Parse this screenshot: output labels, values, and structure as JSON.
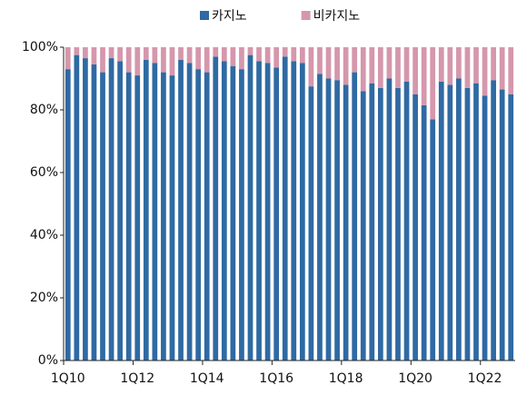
{
  "chart_data": {
    "type": "stacked_bar",
    "categories": [
      "1Q10",
      null,
      null,
      null,
      null,
      null,
      null,
      null,
      "1Q12",
      null,
      null,
      null,
      null,
      null,
      null,
      null,
      "1Q14",
      null,
      null,
      null,
      null,
      null,
      null,
      null,
      "1Q16",
      null,
      null,
      null,
      null,
      null,
      null,
      null,
      "1Q18",
      null,
      null,
      null,
      null,
      null,
      null,
      null,
      "1Q20",
      null,
      null,
      null,
      null,
      null,
      null,
      null,
      "1Q22",
      null,
      null,
      null
    ],
    "series": [
      {
        "name": "카지노",
        "color": "#2f6aa3",
        "values": [
          93,
          97.5,
          96.5,
          94.5,
          92,
          96.5,
          95.5,
          92,
          91,
          96,
          95,
          92,
          91,
          96,
          95,
          93,
          92,
          97,
          95.5,
          94,
          93,
          97.5,
          95.5,
          95,
          93.5,
          97,
          95.5,
          95,
          87.5,
          91.5,
          90,
          89.5,
          88,
          92,
          86,
          88.5,
          87,
          90,
          87,
          89,
          85,
          81.5,
          77,
          89,
          88,
          90,
          87,
          88.5,
          84.5,
          89.5,
          86.5,
          85
        ]
      },
      {
        "name": "비카지노",
        "color": "#d597ac",
        "values": [
          7,
          2.5,
          3.5,
          5.5,
          8,
          3.5,
          4.5,
          8,
          9,
          4,
          5,
          8,
          9,
          4,
          5,
          7,
          8,
          3,
          4.5,
          6,
          7,
          2.5,
          4.5,
          5,
          6.5,
          3,
          4.5,
          5,
          12.5,
          8.5,
          10,
          10.5,
          12,
          8,
          14,
          11.5,
          13,
          10,
          13,
          11,
          15,
          18.5,
          23,
          11,
          12,
          10,
          13,
          11.5,
          15.5,
          10.5,
          13.5,
          15
        ]
      }
    ],
    "ylim": [
      0,
      100
    ],
    "yticks": [
      {
        "value": 0,
        "label": "0%"
      },
      {
        "value": 20,
        "label": "20%"
      },
      {
        "value": 40,
        "label": "40%"
      },
      {
        "value": 60,
        "label": "60%"
      },
      {
        "value": 80,
        "label": "80%"
      },
      {
        "value": 100,
        "label": "100%"
      }
    ],
    "legend": "top"
  }
}
